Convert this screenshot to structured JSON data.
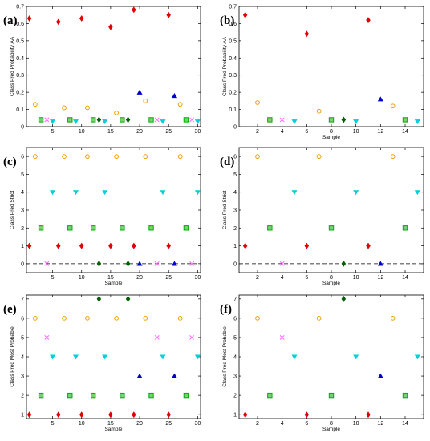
{
  "colors": {
    "mi": "#e00000",
    "mo": "#ff66ff",
    "gcl": "#f0a000",
    "hcl": "#00d0d8",
    "mp": "#00b000",
    "so": "#0000cc",
    "other": "#006000"
  },
  "chart_data": [
    {
      "type": "scatter",
      "panel_label": "(a)",
      "xlabel": "",
      "ylabel": "Class Pred Probability AA",
      "xlim": [
        0.5,
        30.5
      ],
      "ylim": [
        0,
        0.7
      ],
      "xticks": [
        5,
        10,
        15,
        20,
        25,
        30
      ],
      "yticks": [
        0,
        0.1,
        0.2,
        0.3,
        0.4,
        0.5,
        0.6,
        0.7
      ],
      "yticklabels": [
        "0",
        "0.1",
        "0.2",
        "0.3",
        "0.4",
        "0.5",
        "0.6",
        "0.7"
      ],
      "dashed_zero_line": false,
      "points": [
        {
          "x": 1,
          "y": 0.63,
          "m": "d",
          "c": "mi"
        },
        {
          "x": 2,
          "y": 0.13,
          "m": "o",
          "c": "gcl"
        },
        {
          "x": 3,
          "y": 0.04,
          "m": "s",
          "c": "mp"
        },
        {
          "x": 4,
          "y": 0.04,
          "m": "x",
          "c": "mo"
        },
        {
          "x": 5,
          "y": 0.03,
          "m": "v",
          "c": "hcl"
        },
        {
          "x": 6,
          "y": 0.61,
          "m": "d",
          "c": "mi"
        },
        {
          "x": 7,
          "y": 0.11,
          "m": "o",
          "c": "gcl"
        },
        {
          "x": 8,
          "y": 0.04,
          "m": "s",
          "c": "mp"
        },
        {
          "x": 9,
          "y": 0.03,
          "m": "v",
          "c": "hcl"
        },
        {
          "x": 10,
          "y": 0.63,
          "m": "d",
          "c": "mi"
        },
        {
          "x": 11,
          "y": 0.11,
          "m": "o",
          "c": "gcl"
        },
        {
          "x": 12,
          "y": 0.04,
          "m": "s",
          "c": "mp"
        },
        {
          "x": 13,
          "y": 0.04,
          "m": "d",
          "c": "other"
        },
        {
          "x": 14,
          "y": 0.03,
          "m": "v",
          "c": "hcl"
        },
        {
          "x": 15,
          "y": 0.58,
          "m": "d",
          "c": "mi"
        },
        {
          "x": 16,
          "y": 0.08,
          "m": "o",
          "c": "gcl"
        },
        {
          "x": 17,
          "y": 0.04,
          "m": "s",
          "c": "mp"
        },
        {
          "x": 18,
          "y": 0.04,
          "m": "d",
          "c": "other"
        },
        {
          "x": 19,
          "y": 0.68,
          "m": "d",
          "c": "mi"
        },
        {
          "x": 20,
          "y": 0.2,
          "m": "^",
          "c": "so"
        },
        {
          "x": 21,
          "y": 0.15,
          "m": "o",
          "c": "gcl"
        },
        {
          "x": 22,
          "y": 0.04,
          "m": "s",
          "c": "mp"
        },
        {
          "x": 23,
          "y": 0.04,
          "m": "x",
          "c": "mo"
        },
        {
          "x": 24,
          "y": 0.03,
          "m": "v",
          "c": "hcl"
        },
        {
          "x": 25,
          "y": 0.65,
          "m": "d",
          "c": "mi"
        },
        {
          "x": 26,
          "y": 0.18,
          "m": "^",
          "c": "so"
        },
        {
          "x": 27,
          "y": 0.13,
          "m": "o",
          "c": "gcl"
        },
        {
          "x": 28,
          "y": 0.04,
          "m": "s",
          "c": "mp"
        },
        {
          "x": 29,
          "y": 0.04,
          "m": "x",
          "c": "mo"
        },
        {
          "x": 30,
          "y": 0.03,
          "m": "v",
          "c": "hcl"
        }
      ]
    },
    {
      "type": "scatter",
      "panel_label": "(b)",
      "xlabel": "Sample",
      "ylabel": "Class Pred Probability AA",
      "xlim": [
        0.5,
        15.5
      ],
      "ylim": [
        0,
        0.7
      ],
      "xticks": [
        2,
        4,
        6,
        8,
        10,
        12,
        14
      ],
      "yticks": [
        0,
        0.1,
        0.2,
        0.3,
        0.4,
        0.5,
        0.6,
        0.7
      ],
      "yticklabels": [
        "0",
        "0.1",
        "0.2",
        "0.3",
        "0.4",
        "0.5",
        "0.6",
        "0.7"
      ],
      "dashed_zero_line": false,
      "points": [
        {
          "x": 1,
          "y": 0.65,
          "m": "d",
          "c": "mi"
        },
        {
          "x": 2,
          "y": 0.14,
          "m": "o",
          "c": "gcl"
        },
        {
          "x": 3,
          "y": 0.04,
          "m": "s",
          "c": "mp"
        },
        {
          "x": 4,
          "y": 0.04,
          "m": "x",
          "c": "mo"
        },
        {
          "x": 5,
          "y": 0.03,
          "m": "v",
          "c": "hcl"
        },
        {
          "x": 6,
          "y": 0.54,
          "m": "d",
          "c": "mi"
        },
        {
          "x": 7,
          "y": 0.09,
          "m": "o",
          "c": "gcl"
        },
        {
          "x": 8,
          "y": 0.04,
          "m": "s",
          "c": "mp"
        },
        {
          "x": 9,
          "y": 0.04,
          "m": "d",
          "c": "other"
        },
        {
          "x": 10,
          "y": 0.03,
          "m": "v",
          "c": "hcl"
        },
        {
          "x": 11,
          "y": 0.62,
          "m": "d",
          "c": "mi"
        },
        {
          "x": 12,
          "y": 0.16,
          "m": "^",
          "c": "so"
        },
        {
          "x": 13,
          "y": 0.12,
          "m": "o",
          "c": "gcl"
        },
        {
          "x": 14,
          "y": 0.04,
          "m": "s",
          "c": "mp"
        },
        {
          "x": 15,
          "y": 0.03,
          "m": "v",
          "c": "hcl"
        }
      ]
    },
    {
      "type": "scatter",
      "panel_label": "(c)",
      "xlabel": "Sample",
      "ylabel": "Class Pred Strict",
      "xlim": [
        0.5,
        30.5
      ],
      "ylim": [
        -0.5,
        6.5
      ],
      "xticks": [
        5,
        10,
        15,
        20,
        25,
        30
      ],
      "yticks": [
        0,
        1,
        2,
        3,
        4,
        5,
        6
      ],
      "yticklabels": [
        "0",
        "1",
        "2",
        "3",
        "4",
        "5",
        "6"
      ],
      "dashed_zero_line": true,
      "points": [
        {
          "x": 1,
          "y": 1,
          "m": "d",
          "c": "mi"
        },
        {
          "x": 2,
          "y": 6,
          "m": "o",
          "c": "gcl"
        },
        {
          "x": 3,
          "y": 2,
          "m": "s",
          "c": "mp"
        },
        {
          "x": 4,
          "y": 0,
          "m": "x",
          "c": "mo"
        },
        {
          "x": 5,
          "y": 4,
          "m": "v",
          "c": "hcl"
        },
        {
          "x": 6,
          "y": 1,
          "m": "d",
          "c": "mi"
        },
        {
          "x": 7,
          "y": 6,
          "m": "o",
          "c": "gcl"
        },
        {
          "x": 8,
          "y": 2,
          "m": "s",
          "c": "mp"
        },
        {
          "x": 9,
          "y": 4,
          "m": "v",
          "c": "hcl"
        },
        {
          "x": 10,
          "y": 1,
          "m": "d",
          "c": "mi"
        },
        {
          "x": 11,
          "y": 6,
          "m": "o",
          "c": "gcl"
        },
        {
          "x": 12,
          "y": 2,
          "m": "s",
          "c": "mp"
        },
        {
          "x": 13,
          "y": 0,
          "m": "d",
          "c": "other"
        },
        {
          "x": 14,
          "y": 4,
          "m": "v",
          "c": "hcl"
        },
        {
          "x": 15,
          "y": 1,
          "m": "d",
          "c": "mi"
        },
        {
          "x": 16,
          "y": 6,
          "m": "o",
          "c": "gcl"
        },
        {
          "x": 17,
          "y": 2,
          "m": "s",
          "c": "mp"
        },
        {
          "x": 18,
          "y": 0,
          "m": "d",
          "c": "other"
        },
        {
          "x": 19,
          "y": 1,
          "m": "d",
          "c": "mi"
        },
        {
          "x": 20,
          "y": 0,
          "m": "^",
          "c": "so"
        },
        {
          "x": 21,
          "y": 6,
          "m": "o",
          "c": "gcl"
        },
        {
          "x": 22,
          "y": 2,
          "m": "s",
          "c": "mp"
        },
        {
          "x": 23,
          "y": 0,
          "m": "x",
          "c": "mo"
        },
        {
          "x": 24,
          "y": 4,
          "m": "v",
          "c": "hcl"
        },
        {
          "x": 25,
          "y": 1,
          "m": "d",
          "c": "mi"
        },
        {
          "x": 26,
          "y": 0,
          "m": "^",
          "c": "so"
        },
        {
          "x": 27,
          "y": 6,
          "m": "o",
          "c": "gcl"
        },
        {
          "x": 28,
          "y": 2,
          "m": "s",
          "c": "mp"
        },
        {
          "x": 29,
          "y": 0,
          "m": "x",
          "c": "mo"
        },
        {
          "x": 30,
          "y": 4,
          "m": "v",
          "c": "hcl"
        }
      ]
    },
    {
      "type": "scatter",
      "panel_label": "(d)",
      "xlabel": "Sample",
      "ylabel": "Class Pred Strict",
      "xlim": [
        0.5,
        15.5
      ],
      "ylim": [
        -0.5,
        6.5
      ],
      "xticks": [
        2,
        4,
        6,
        8,
        10,
        12,
        14
      ],
      "yticks": [
        0,
        1,
        2,
        3,
        4,
        5,
        6
      ],
      "yticklabels": [
        "0",
        "1",
        "2",
        "3",
        "4",
        "5",
        "6"
      ],
      "dashed_zero_line": true,
      "points": [
        {
          "x": 1,
          "y": 1,
          "m": "d",
          "c": "mi"
        },
        {
          "x": 2,
          "y": 6,
          "m": "o",
          "c": "gcl"
        },
        {
          "x": 3,
          "y": 2,
          "m": "s",
          "c": "mp"
        },
        {
          "x": 4,
          "y": 0,
          "m": "x",
          "c": "mo"
        },
        {
          "x": 5,
          "y": 4,
          "m": "v",
          "c": "hcl"
        },
        {
          "x": 6,
          "y": 1,
          "m": "d",
          "c": "mi"
        },
        {
          "x": 7,
          "y": 6,
          "m": "o",
          "c": "gcl"
        },
        {
          "x": 8,
          "y": 2,
          "m": "s",
          "c": "mp"
        },
        {
          "x": 9,
          "y": 0,
          "m": "d",
          "c": "other"
        },
        {
          "x": 10,
          "y": 4,
          "m": "v",
          "c": "hcl"
        },
        {
          "x": 11,
          "y": 1,
          "m": "d",
          "c": "mi"
        },
        {
          "x": 12,
          "y": 0,
          "m": "^",
          "c": "so"
        },
        {
          "x": 13,
          "y": 6,
          "m": "o",
          "c": "gcl"
        },
        {
          "x": 14,
          "y": 2,
          "m": "s",
          "c": "mp"
        },
        {
          "x": 15,
          "y": 4,
          "m": "v",
          "c": "hcl"
        }
      ]
    },
    {
      "type": "scatter",
      "panel_label": "(e)",
      "xlabel": "Sample",
      "ylabel": "Class Pred Most Probable",
      "xlim": [
        0.5,
        30.5
      ],
      "ylim": [
        0.8,
        7.2
      ],
      "xticks": [
        5,
        10,
        15,
        20,
        25,
        30
      ],
      "yticks": [
        1,
        2,
        3,
        4,
        5,
        6,
        7
      ],
      "yticklabels": [
        "1",
        "2",
        "3",
        "4",
        "5",
        "6",
        "7"
      ],
      "dashed_zero_line": false,
      "points": [
        {
          "x": 1,
          "y": 1,
          "m": "d",
          "c": "mi"
        },
        {
          "x": 2,
          "y": 6,
          "m": "o",
          "c": "gcl"
        },
        {
          "x": 3,
          "y": 2,
          "m": "s",
          "c": "mp"
        },
        {
          "x": 4,
          "y": 5,
          "m": "x",
          "c": "mo"
        },
        {
          "x": 5,
          "y": 4,
          "m": "v",
          "c": "hcl"
        },
        {
          "x": 6,
          "y": 1,
          "m": "d",
          "c": "mi"
        },
        {
          "x": 7,
          "y": 6,
          "m": "o",
          "c": "gcl"
        },
        {
          "x": 8,
          "y": 2,
          "m": "s",
          "c": "mp"
        },
        {
          "x": 9,
          "y": 4,
          "m": "v",
          "c": "hcl"
        },
        {
          "x": 10,
          "y": 1,
          "m": "d",
          "c": "mi"
        },
        {
          "x": 11,
          "y": 6,
          "m": "o",
          "c": "gcl"
        },
        {
          "x": 12,
          "y": 2,
          "m": "s",
          "c": "mp"
        },
        {
          "x": 13,
          "y": 7,
          "m": "d",
          "c": "other"
        },
        {
          "x": 14,
          "y": 4,
          "m": "v",
          "c": "hcl"
        },
        {
          "x": 15,
          "y": 1,
          "m": "d",
          "c": "mi"
        },
        {
          "x": 16,
          "y": 6,
          "m": "o",
          "c": "gcl"
        },
        {
          "x": 17,
          "y": 2,
          "m": "s",
          "c": "mp"
        },
        {
          "x": 18,
          "y": 7,
          "m": "d",
          "c": "other"
        },
        {
          "x": 19,
          "y": 1,
          "m": "d",
          "c": "mi"
        },
        {
          "x": 20,
          "y": 3,
          "m": "^",
          "c": "so"
        },
        {
          "x": 21,
          "y": 6,
          "m": "o",
          "c": "gcl"
        },
        {
          "x": 22,
          "y": 2,
          "m": "s",
          "c": "mp"
        },
        {
          "x": 23,
          "y": 5,
          "m": "x",
          "c": "mo"
        },
        {
          "x": 24,
          "y": 4,
          "m": "v",
          "c": "hcl"
        },
        {
          "x": 25,
          "y": 1,
          "m": "d",
          "c": "mi"
        },
        {
          "x": 26,
          "y": 3,
          "m": "^",
          "c": "so"
        },
        {
          "x": 27,
          "y": 6,
          "m": "o",
          "c": "gcl"
        },
        {
          "x": 28,
          "y": 2,
          "m": "s",
          "c": "mp"
        },
        {
          "x": 29,
          "y": 5,
          "m": "x",
          "c": "mo"
        },
        {
          "x": 30,
          "y": 4,
          "m": "v",
          "c": "hcl"
        }
      ]
    },
    {
      "type": "scatter",
      "panel_label": "(f)",
      "xlabel": "Sample",
      "ylabel": "Class Pred Most Probable",
      "xlim": [
        0.5,
        15.5
      ],
      "ylim": [
        0.8,
        7.2
      ],
      "xticks": [
        2,
        4,
        6,
        8,
        10,
        12,
        14
      ],
      "yticks": [
        1,
        2,
        3,
        4,
        5,
        6,
        7
      ],
      "yticklabels": [
        "1",
        "2",
        "3",
        "4",
        "5",
        "6",
        "7"
      ],
      "dashed_zero_line": false,
      "points": [
        {
          "x": 1,
          "y": 1,
          "m": "d",
          "c": "mi"
        },
        {
          "x": 2,
          "y": 6,
          "m": "o",
          "c": "gcl"
        },
        {
          "x": 3,
          "y": 2,
          "m": "s",
          "c": "mp"
        },
        {
          "x": 4,
          "y": 5,
          "m": "x",
          "c": "mo"
        },
        {
          "x": 5,
          "y": 4,
          "m": "v",
          "c": "hcl"
        },
        {
          "x": 6,
          "y": 1,
          "m": "d",
          "c": "mi"
        },
        {
          "x": 7,
          "y": 6,
          "m": "o",
          "c": "gcl"
        },
        {
          "x": 8,
          "y": 2,
          "m": "s",
          "c": "mp"
        },
        {
          "x": 9,
          "y": 7,
          "m": "d",
          "c": "other"
        },
        {
          "x": 10,
          "y": 4,
          "m": "v",
          "c": "hcl"
        },
        {
          "x": 11,
          "y": 1,
          "m": "d",
          "c": "mi"
        },
        {
          "x": 12,
          "y": 3,
          "m": "^",
          "c": "so"
        },
        {
          "x": 13,
          "y": 6,
          "m": "o",
          "c": "gcl"
        },
        {
          "x": 14,
          "y": 2,
          "m": "s",
          "c": "mp"
        },
        {
          "x": 15,
          "y": 4,
          "m": "v",
          "c": "hcl"
        }
      ]
    }
  ]
}
